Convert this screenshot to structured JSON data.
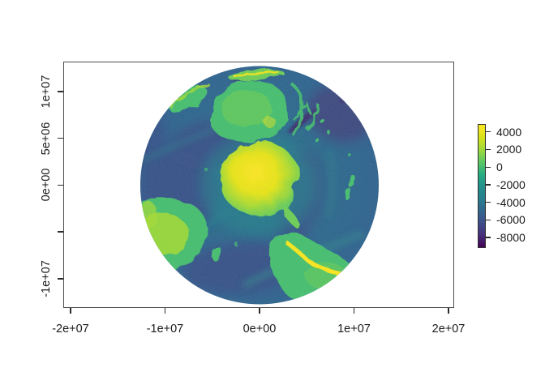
{
  "title": "",
  "palette": {
    "text": "#1a1a1a",
    "box_line": "#4d4d4d",
    "tick_line": "#2b2b2b",
    "ocean_mid": "#2e6d8e",
    "ocean_shallow": "#29798c",
    "ocean_deep": "#3a5389",
    "ocean_deeper": "#41497f",
    "trench": "#3e2b6f",
    "ridge": "#2f8d8e",
    "shelf": "#26838d",
    "land": "#46bf6f",
    "land_light": "#6ece58",
    "land_bright": "#a6db35",
    "highland": "#f2e51e",
    "ice_core": "#fde725",
    "ice_edge": "#5ec962"
  },
  "chart_data": {
    "type": "heatmap",
    "title": "",
    "xlabel": "",
    "ylabel": "",
    "plot_shape": "circular raster map (south polar azimuthal view of global elevation / ocean bathymetry)",
    "grid": false,
    "x_axis": {
      "range": [
        -20770000,
        20600000
      ],
      "ticks": [
        {
          "value": -20000000,
          "label": "-2e+07"
        },
        {
          "value": -10000000,
          "label": "-1e+07"
        },
        {
          "value": 0,
          "label": "0e+00"
        },
        {
          "value": 10000000,
          "label": "1e+07"
        },
        {
          "value": 20000000,
          "label": "2e+07"
        }
      ]
    },
    "y_axis": {
      "range": [
        -13120000,
        13200000
      ],
      "ticks": [
        {
          "value": 10000000,
          "label": "1e+07"
        },
        {
          "value": 5000000,
          "label": "5e+06"
        },
        {
          "value": 0,
          "label": "0e+00"
        },
        {
          "value": -5000000,
          "label": ""
        },
        {
          "value": -10000000,
          "label": "-1e+07"
        }
      ]
    },
    "disc": {
      "center_x": 0,
      "center_y": 0,
      "radius": 12650000
    },
    "colorbar": {
      "position": "right",
      "palette": "viridis",
      "vmin": -9200,
      "vmax": 4900,
      "ticks": [
        {
          "value": 4000,
          "label": "4000"
        },
        {
          "value": 2000,
          "label": "2000"
        },
        {
          "value": 0,
          "label": "0"
        },
        {
          "value": -2000,
          "label": "-2000"
        },
        {
          "value": -4000,
          "label": "-4000"
        },
        {
          "value": -6000,
          "label": "-6000"
        },
        {
          "value": -8000,
          "label": "-8000"
        }
      ],
      "gradient_top_to_bottom": [
        {
          "o": 0,
          "c": "#fde725"
        },
        {
          "o": 10,
          "c": "#d8e219"
        },
        {
          "o": 20,
          "c": "#a0da39"
        },
        {
          "o": 30,
          "c": "#5ec962"
        },
        {
          "o": 40,
          "c": "#28ae80"
        },
        {
          "o": 50,
          "c": "#21918c"
        },
        {
          "o": 60,
          "c": "#277f8e"
        },
        {
          "o": 70,
          "c": "#31688e"
        },
        {
          "o": 80,
          "c": "#3d4e8a"
        },
        {
          "o": 90,
          "c": "#462f7c"
        },
        {
          "o": 100,
          "c": "#440154"
        }
      ]
    },
    "regions": [
      {
        "name": "antarctica",
        "appearance": "bright yellow high-elevation mass at center with green rim and peninsula"
      },
      {
        "name": "australia",
        "appearance": "green landmass upper center, yellow-green New Guinea ridge above it"
      },
      {
        "name": "africa",
        "appearance": "green landmass with bright yellow-green interior, lower left rim"
      },
      {
        "name": "south-america",
        "appearance": "green landmass lower right with bright yellow Andes ridge"
      },
      {
        "name": "new-zealand",
        "appearance": "small green islands right of center"
      },
      {
        "name": "southern-ocean",
        "appearance": "teal-blue ocean, darker indigo deep basins, dark purple trenches, lighter teal mid-ocean ridges"
      }
    ]
  }
}
